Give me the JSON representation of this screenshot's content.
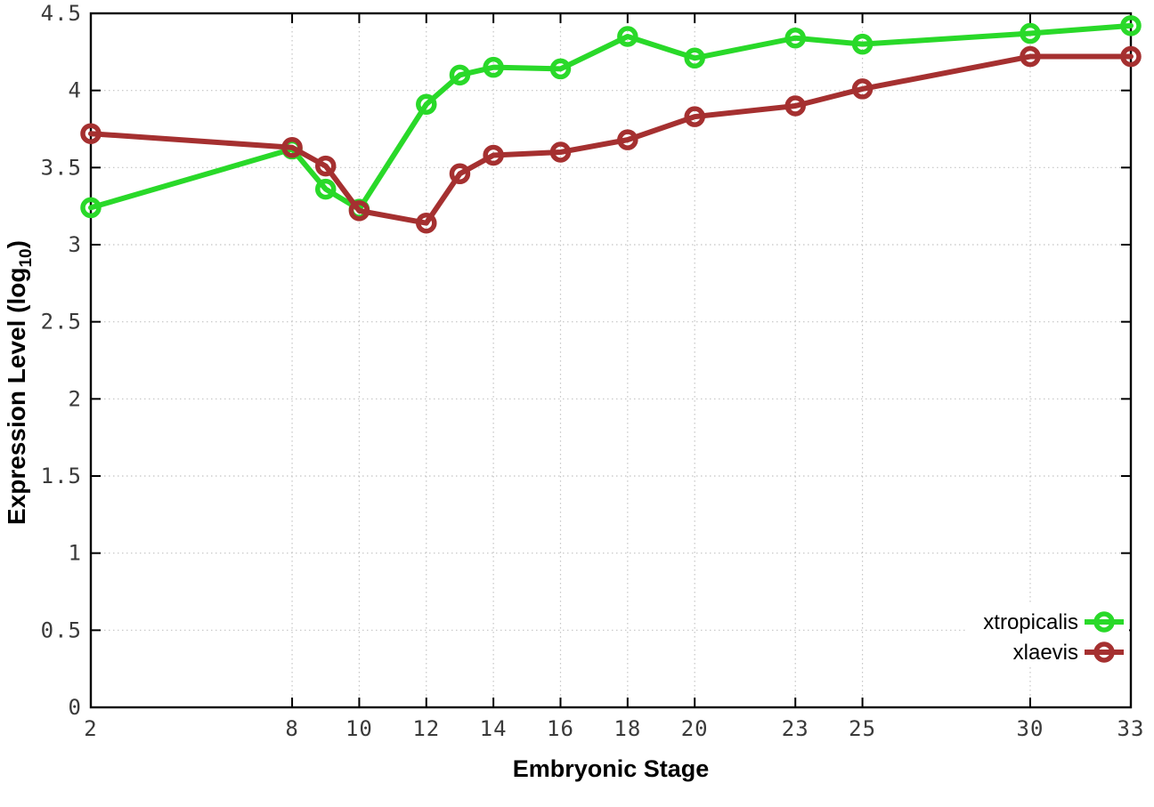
{
  "chart_data": {
    "type": "line",
    "title": "",
    "xlabel": "Embryonic Stage",
    "ylabel": {
      "pre": "Expression Level (log",
      "sub": "10",
      "post": ")"
    },
    "xlim": [
      2,
      33
    ],
    "ylim": [
      0,
      4.5
    ],
    "x_ticks": [
      2,
      8,
      10,
      12,
      14,
      16,
      18,
      20,
      23,
      25,
      30,
      33
    ],
    "y_ticks": [
      0,
      0.5,
      1,
      1.5,
      2,
      2.5,
      3,
      3.5,
      4,
      4.5
    ],
    "grid": true,
    "legend_position": "bottom-right-inside",
    "x": [
      2,
      8,
      9,
      10,
      12,
      13,
      14,
      16,
      18,
      20,
      23,
      25,
      30,
      33
    ],
    "series": [
      {
        "name": "xtropicalis",
        "color": "#29d929",
        "values": [
          3.24,
          3.62,
          3.36,
          3.23,
          3.91,
          4.1,
          4.15,
          4.14,
          4.35,
          4.21,
          4.34,
          4.3,
          4.37,
          4.42
        ]
      },
      {
        "name": "xlaevis",
        "color": "#a53030",
        "values": [
          3.72,
          3.63,
          3.51,
          3.22,
          3.14,
          3.46,
          3.58,
          3.6,
          3.68,
          3.83,
          3.9,
          4.01,
          4.22,
          4.22
        ]
      }
    ],
    "colors": {
      "background": "#ffffff",
      "grid": "#c4c4c4",
      "axis": "#000000",
      "tick_label": "#3a3a3a"
    }
  }
}
